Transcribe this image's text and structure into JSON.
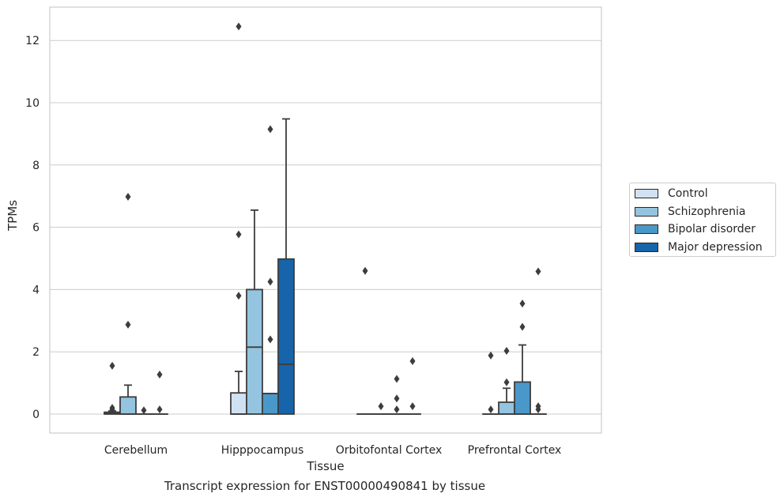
{
  "chart_data": {
    "type": "box",
    "xlabel": "Tissue",
    "ylabel": "TPMs",
    "caption": "Transcript expression for ENST00000490841 by tissue",
    "ylim": [
      -0.6,
      13.1
    ],
    "yticks": [
      0,
      2,
      4,
      6,
      8,
      10,
      12
    ],
    "grid": true,
    "legend_position": "right",
    "categories": [
      "Cerebellum",
      "Hipppocampus",
      "Orbitofontal Cortex",
      "Prefrontal Cortex"
    ],
    "series": [
      {
        "name": "Control",
        "color": "#d0e1f2",
        "boxes": [
          {
            "whislo": 0,
            "q1": 0,
            "med": 0.02,
            "q3": 0.06,
            "whishi": 0.1,
            "fliers": [
              0.15,
              0.2,
              1.55
            ]
          },
          {
            "whislo": 0,
            "q1": 0,
            "med": 0,
            "q3": 0.68,
            "whishi": 1.37,
            "fliers": [
              3.8,
              5.77,
              12.45
            ]
          },
          {
            "whislo": 0,
            "q1": 0,
            "med": 0,
            "q3": 0,
            "whishi": 0,
            "fliers": [
              4.6
            ]
          },
          {
            "whislo": 0,
            "q1": 0,
            "med": 0,
            "q3": 0,
            "whishi": 0,
            "fliers": [
              0.15,
              1.88
            ]
          }
        ]
      },
      {
        "name": "Schizophrenia",
        "color": "#94c4df",
        "boxes": [
          {
            "whislo": 0,
            "q1": 0,
            "med": 0,
            "q3": 0.55,
            "whishi": 0.93,
            "fliers": [
              2.87,
              6.98
            ]
          },
          {
            "whislo": 0,
            "q1": 0,
            "med": 2.15,
            "q3": 4.0,
            "whishi": 6.55,
            "fliers": []
          },
          {
            "whislo": 0,
            "q1": 0,
            "med": 0,
            "q3": 0,
            "whishi": 0,
            "fliers": [
              0.25
            ]
          },
          {
            "whislo": 0,
            "q1": 0,
            "med": 0,
            "q3": 0.38,
            "whishi": 0.83,
            "fliers": [
              1.02,
              2.03
            ]
          }
        ]
      },
      {
        "name": "Bipolar disorder",
        "color": "#4a98c9",
        "boxes": [
          {
            "whislo": 0,
            "q1": 0,
            "med": 0,
            "q3": 0,
            "whishi": 0,
            "fliers": [
              0.12
            ]
          },
          {
            "whislo": 0,
            "q1": 0,
            "med": 0.66,
            "q3": 0.66,
            "whishi": 0.66,
            "fliers": [
              2.4,
              4.25,
              9.15
            ]
          },
          {
            "whislo": 0,
            "q1": 0,
            "med": 0,
            "q3": 0,
            "whishi": 0,
            "fliers": [
              0.15,
              0.5,
              1.13
            ]
          },
          {
            "whislo": 0,
            "q1": 0,
            "med": 0,
            "q3": 1.03,
            "whishi": 2.22,
            "fliers": [
              2.8,
              3.55
            ]
          }
        ]
      },
      {
        "name": "Major depression",
        "color": "#1764ab",
        "boxes": [
          {
            "whislo": 0,
            "q1": 0,
            "med": 0,
            "q3": 0,
            "whishi": 0,
            "fliers": [
              0.15,
              1.27
            ]
          },
          {
            "whislo": 0,
            "q1": 0,
            "med": 1.6,
            "q3": 4.98,
            "whishi": 9.48,
            "fliers": []
          },
          {
            "whislo": 0,
            "q1": 0,
            "med": 0,
            "q3": 0,
            "whishi": 0,
            "fliers": [
              0.25,
              1.7
            ]
          },
          {
            "whislo": 0,
            "q1": 0,
            "med": 0,
            "q3": 0,
            "whishi": 0,
            "fliers": [
              0.15,
              0.25,
              4.58
            ]
          }
        ]
      }
    ]
  }
}
